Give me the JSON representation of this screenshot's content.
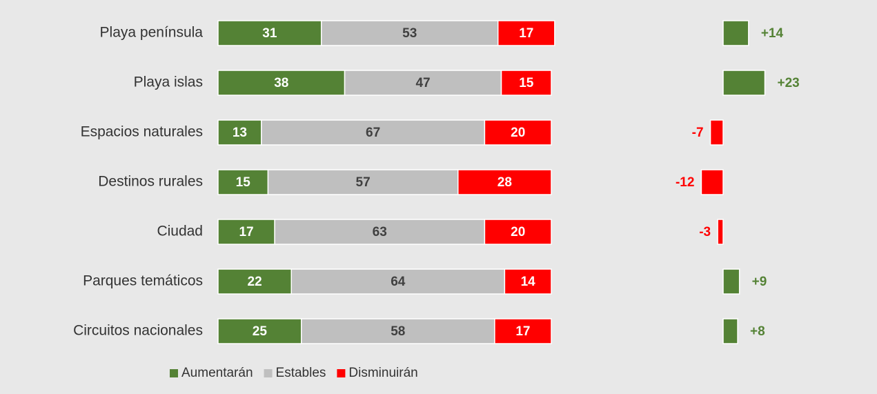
{
  "chart_data": [
    {
      "type": "stacked_bar",
      "categories": [
        "Playa península",
        "Playa islas",
        "Espacios naturales",
        "Destinos rurales",
        "Ciudad",
        "Parques temáticos",
        "Circuitos nacionales"
      ],
      "series": [
        {
          "name": "Aumentarán",
          "color": "#548235",
          "values": [
            31,
            38,
            13,
            15,
            17,
            22,
            25
          ]
        },
        {
          "name": "Estables",
          "color": "#bfbfbf",
          "values": [
            53,
            47,
            67,
            57,
            63,
            64,
            58
          ]
        },
        {
          "name": "Disminuirán",
          "color": "#ff0000",
          "values": [
            17,
            15,
            20,
            28,
            20,
            14,
            17
          ]
        }
      ],
      "legend": "bottom"
    },
    {
      "type": "diverging_bar",
      "values": [
        14,
        23,
        -7,
        -12,
        -3,
        9,
        8
      ],
      "value_labels": [
        "+14",
        "+23",
        "-7",
        "-12",
        "-3",
        "+9",
        "+8"
      ],
      "positive_color": "#548235",
      "negative_color": "#ff0000"
    }
  ]
}
